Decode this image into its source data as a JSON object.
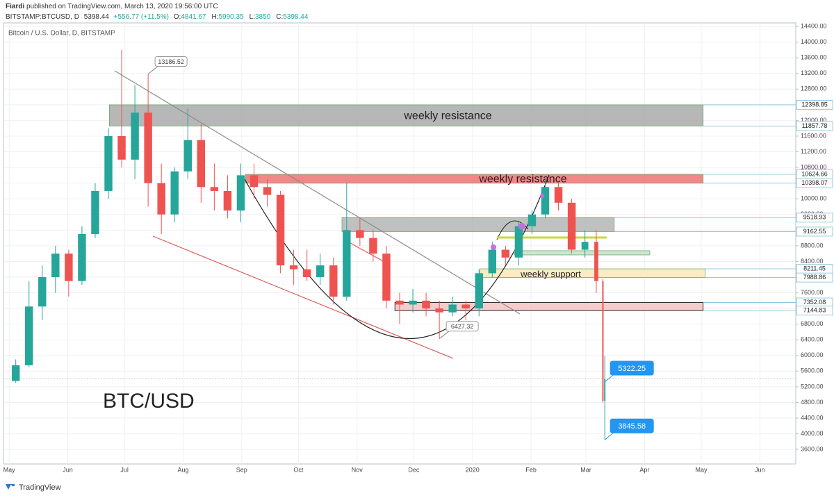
{
  "header": {
    "author": "Fiardi",
    "published": "published on TradingView.com, March 13, 2020 19:56:00 UTC",
    "symbol": "BITSTAMP:BTCUSD, D",
    "last": 5398.44,
    "change": "+556.77 (+11.5%)",
    "ohlc": [
      {
        "label": "O:",
        "value": 4841.67
      },
      {
        "label": "H:",
        "value": 5990.35
      },
      {
        "label": "L:",
        "value": 3850.0
      },
      {
        "label": "C:",
        "value": 5398.44
      }
    ]
  },
  "footer": {
    "brand": "TradingView"
  },
  "chart_data": {
    "type": "candlestick",
    "title": "Bitcoin / U.S. Dollar, D, BITSTAMP",
    "annotation": "BTC/USD",
    "up_color": "#26a69a",
    "down_color": "#ef5350",
    "grid": true,
    "xlim": [
      -3,
      416
    ],
    "xticks": [
      {
        "value": 0,
        "label": "May"
      },
      {
        "value": 31,
        "label": "Jun"
      },
      {
        "value": 61,
        "label": "Jul"
      },
      {
        "value": 92,
        "label": "Aug"
      },
      {
        "value": 123,
        "label": "Sep"
      },
      {
        "value": 153,
        "label": "Oct"
      },
      {
        "value": 184,
        "label": "Nov"
      },
      {
        "value": 214,
        "label": "Dec"
      },
      {
        "value": 245,
        "label": "2020"
      },
      {
        "value": 276,
        "label": "Feb"
      },
      {
        "value": 305,
        "label": "Mar"
      },
      {
        "value": 336,
        "label": "Apr"
      },
      {
        "value": 366,
        "label": "May"
      },
      {
        "value": 397,
        "label": "Jun"
      }
    ],
    "ylim": [
      3230,
      14490
    ],
    "yticks": [
      {
        "value": 3600,
        "label": "3600.00"
      },
      {
        "value": 4000,
        "label": "4000.00"
      },
      {
        "value": 4400,
        "label": "4400.00"
      },
      {
        "value": 4800,
        "label": "4800.00"
      },
      {
        "value": 5200,
        "label": "5200.00"
      },
      {
        "value": 5600,
        "label": "5600.00"
      },
      {
        "value": 6000,
        "label": "6000.00"
      },
      {
        "value": 6400,
        "label": "6400.00"
      },
      {
        "value": 6800,
        "label": "6800.00"
      },
      {
        "value": 7200,
        "label": "7200.00"
      },
      {
        "value": 7600,
        "label": "7600.00"
      },
      {
        "value": 8000,
        "label": "8000.00"
      },
      {
        "value": 8400,
        "label": "8400.00"
      },
      {
        "value": 8800,
        "label": "8800.00"
      },
      {
        "value": 9200,
        "label": "9200.00"
      },
      {
        "value": 9600,
        "label": "9600.00"
      },
      {
        "value": 10000,
        "label": "10000.00"
      },
      {
        "value": 10400,
        "label": "10400.00"
      },
      {
        "value": 10800,
        "label": "10800.00"
      },
      {
        "value": 11200,
        "label": "11200.00"
      },
      {
        "value": 11600,
        "label": "11600.00"
      },
      {
        "value": 12000,
        "label": "12000.00"
      },
      {
        "value": 12400,
        "label": "12400.00"
      },
      {
        "value": 12800,
        "label": "12800.00"
      },
      {
        "value": 13200,
        "label": "13200.00"
      },
      {
        "value": 13600,
        "label": "13600.00"
      },
      {
        "value": 14000,
        "label": "14000.00"
      },
      {
        "value": 14400,
        "label": "14400.00"
      }
    ],
    "x": [
      3.5,
      10.5,
      17.5,
      24.5,
      31.5,
      38.5,
      45.5,
      52.5,
      59.5,
      66.5,
      73.5,
      80.5,
      87.5,
      94.5,
      101.5,
      108.5,
      115.5,
      122.5,
      129.5,
      136.5,
      143.5,
      150.5,
      157.5,
      164.5,
      171.5,
      178.5,
      185.5,
      192.5,
      199.5,
      206.5,
      213.5,
      220.5,
      227.5,
      234.5,
      241.5,
      248.5,
      255.5,
      262.5,
      269.5,
      276.5,
      283.5,
      290.5,
      297.5,
      304.5,
      310.5,
      314,
      315
    ],
    "open": [
      5350,
      5750,
      7250,
      8000,
      8600,
      7900,
      9100,
      10200,
      11600,
      11000,
      12200,
      10400,
      9600,
      10700,
      11500,
      10300,
      10200,
      9700,
      10600,
      10300,
      10100,
      8300,
      8200,
      8000,
      8300,
      7500,
      9200,
      9000,
      8600,
      7400,
      7300,
      7400,
      7200,
      7100,
      7300,
      7200,
      8100,
      8700,
      8500,
      9300,
      9600,
      10300,
      9900,
      8700,
      8900,
      7900,
      4841.67
    ],
    "high": [
      5900,
      7900,
      8300,
      8800,
      8700,
      9300,
      10400,
      11800,
      13800,
      12900,
      13186.52,
      10900,
      10800,
      12300,
      11900,
      10900,
      10600,
      10900,
      10900,
      10500,
      10200,
      8700,
      8700,
      8600,
      8500,
      10400,
      9500,
      9200,
      8800,
      7600,
      7700,
      7600,
      7400,
      7500,
      7400,
      8200,
      8900,
      8800,
      9400,
      9700,
      10500,
      10400,
      10000,
      9200,
      9200,
      7950,
      5990.35
    ],
    "low": [
      5300,
      5700,
      6900,
      7600,
      7500,
      7800,
      9000,
      10000,
      10800,
      10500,
      9800,
      9100,
      9400,
      10500,
      9900,
      9700,
      9500,
      9400,
      10000,
      9800,
      8100,
      7800,
      7900,
      7800,
      7300,
      7400,
      8800,
      8400,
      7200,
      6800,
      7100,
      7000,
      6427.32,
      7000,
      6900,
      7000,
      8000,
      8300,
      8300,
      9100,
      9500,
      9700,
      8600,
      8500,
      7600,
      4800,
      3850
    ],
    "close": [
      5750,
      7250,
      8000,
      8600,
      7900,
      9100,
      10200,
      11600,
      11000,
      12200,
      10400,
      9600,
      10700,
      11500,
      10300,
      10200,
      9700,
      10600,
      10300,
      10100,
      8300,
      8200,
      8000,
      8300,
      7500,
      9200,
      9000,
      8600,
      7400,
      7300,
      7400,
      7200,
      7100,
      7300,
      7200,
      8100,
      8700,
      8500,
      9300,
      9600,
      10300,
      9900,
      8700,
      8900,
      7900,
      4841.67,
      5398.44
    ],
    "zones": [
      {
        "low": 11857.78,
        "high": 12398.85,
        "x0": 53,
        "x1": 367,
        "color": "#a9aaa9",
        "label": "weekly resistance"
      },
      {
        "low": 10398.07,
        "high": 10624.66,
        "x0": 125,
        "x1": 367,
        "color": "#f07272",
        "label": "weekly resistance"
      },
      {
        "low": 9162.55,
        "high": 9518.93,
        "x0": 176,
        "x1": 320,
        "color": "#b4b5b4"
      },
      {
        "low": 7988.86,
        "high": 8211.45,
        "x0": 249,
        "x1": 368,
        "color": "#fce9b8",
        "label": "weekly support"
      },
      {
        "low": 7144.83,
        "high": 7352.08,
        "x0": 204,
        "x1": 367,
        "color": "#f3c3c3"
      }
    ],
    "callouts": [
      {
        "value": 13186.52,
        "x": 73.5,
        "style": "gray"
      },
      {
        "value": 6427.32,
        "x": 227.5,
        "style": "gray"
      },
      {
        "value": 5322.25,
        "x": 315,
        "style": "blue"
      },
      {
        "value": 3845.58,
        "x": 315,
        "style": "blue"
      }
    ]
  }
}
